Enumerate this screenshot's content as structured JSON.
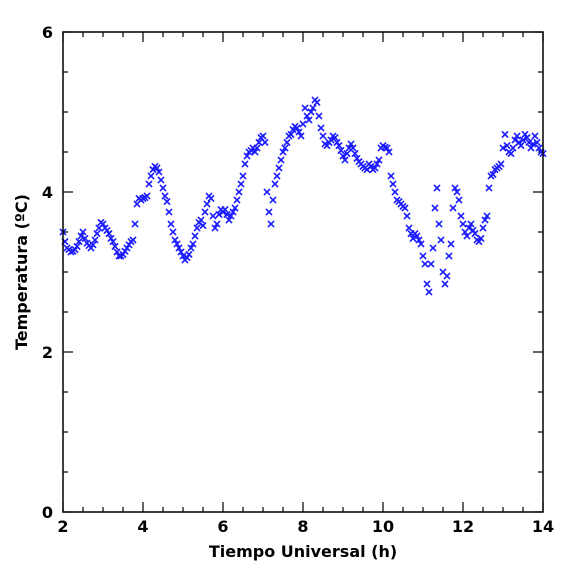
{
  "chart_data": {
    "type": "scatter",
    "title": "",
    "xlabel": "Tiempo Universal (h)",
    "ylabel": "Temperatura (ºC)",
    "xlim": [
      2,
      14
    ],
    "ylim": [
      0,
      6
    ],
    "xticks": [
      2,
      4,
      6,
      8,
      10,
      12,
      14
    ],
    "yticks": [
      0,
      2,
      4,
      6
    ],
    "grid": false,
    "marker": "x",
    "color": "#1a1aff",
    "series": [
      {
        "points": [
          [
            2.0,
            3.5
          ],
          [
            2.05,
            3.38
          ],
          [
            2.1,
            3.3
          ],
          [
            2.15,
            3.28
          ],
          [
            2.2,
            3.25
          ],
          [
            2.25,
            3.26
          ],
          [
            2.3,
            3.28
          ],
          [
            2.35,
            3.32
          ],
          [
            2.4,
            3.38
          ],
          [
            2.45,
            3.45
          ],
          [
            2.5,
            3.5
          ],
          [
            2.55,
            3.42
          ],
          [
            2.6,
            3.36
          ],
          [
            2.65,
            3.33
          ],
          [
            2.7,
            3.3
          ],
          [
            2.75,
            3.34
          ],
          [
            2.8,
            3.4
          ],
          [
            2.85,
            3.48
          ],
          [
            2.9,
            3.55
          ],
          [
            2.95,
            3.62
          ],
          [
            3.0,
            3.6
          ],
          [
            3.05,
            3.55
          ],
          [
            3.1,
            3.52
          ],
          [
            3.15,
            3.48
          ],
          [
            3.2,
            3.42
          ],
          [
            3.25,
            3.38
          ],
          [
            3.3,
            3.32
          ],
          [
            3.35,
            3.25
          ],
          [
            3.4,
            3.2
          ],
          [
            3.45,
            3.2
          ],
          [
            3.5,
            3.22
          ],
          [
            3.55,
            3.26
          ],
          [
            3.6,
            3.3
          ],
          [
            3.65,
            3.34
          ],
          [
            3.7,
            3.38
          ],
          [
            3.75,
            3.4
          ],
          [
            3.8,
            3.6
          ],
          [
            3.85,
            3.85
          ],
          [
            3.9,
            3.92
          ],
          [
            3.95,
            3.9
          ],
          [
            4.0,
            3.92
          ],
          [
            4.05,
            3.93
          ],
          [
            4.1,
            3.95
          ],
          [
            4.15,
            4.1
          ],
          [
            4.2,
            4.2
          ],
          [
            4.25,
            4.28
          ],
          [
            4.3,
            4.32
          ],
          [
            4.35,
            4.3
          ],
          [
            4.4,
            4.25
          ],
          [
            4.45,
            4.15
          ],
          [
            4.5,
            4.05
          ],
          [
            4.55,
            3.95
          ],
          [
            4.6,
            3.88
          ],
          [
            4.65,
            3.75
          ],
          [
            4.7,
            3.6
          ],
          [
            4.75,
            3.5
          ],
          [
            4.8,
            3.4
          ],
          [
            4.85,
            3.35
          ],
          [
            4.9,
            3.3
          ],
          [
            4.95,
            3.25
          ],
          [
            5.0,
            3.2
          ],
          [
            5.05,
            3.15
          ],
          [
            5.1,
            3.18
          ],
          [
            5.15,
            3.22
          ],
          [
            5.2,
            3.3
          ],
          [
            5.25,
            3.35
          ],
          [
            5.3,
            3.45
          ],
          [
            5.35,
            3.55
          ],
          [
            5.4,
            3.62
          ],
          [
            5.45,
            3.65
          ],
          [
            5.5,
            3.58
          ],
          [
            5.55,
            3.75
          ],
          [
            5.6,
            3.85
          ],
          [
            5.65,
            3.95
          ],
          [
            5.7,
            3.92
          ],
          [
            5.75,
            3.7
          ],
          [
            5.8,
            3.55
          ],
          [
            5.85,
            3.6
          ],
          [
            5.9,
            3.72
          ],
          [
            5.95,
            3.78
          ],
          [
            6.0,
            3.75
          ],
          [
            6.05,
            3.78
          ],
          [
            6.1,
            3.72
          ],
          [
            6.15,
            3.65
          ],
          [
            6.2,
            3.7
          ],
          [
            6.25,
            3.75
          ],
          [
            6.3,
            3.8
          ],
          [
            6.35,
            3.9
          ],
          [
            6.4,
            4.0
          ],
          [
            6.45,
            4.1
          ],
          [
            6.5,
            4.2
          ],
          [
            6.55,
            4.35
          ],
          [
            6.6,
            4.45
          ],
          [
            6.65,
            4.5
          ],
          [
            6.7,
            4.52
          ],
          [
            6.75,
            4.55
          ],
          [
            6.8,
            4.5
          ],
          [
            6.85,
            4.55
          ],
          [
            6.9,
            4.62
          ],
          [
            6.95,
            4.68
          ],
          [
            7.0,
            4.7
          ],
          [
            7.05,
            4.62
          ],
          [
            7.1,
            4.0
          ],
          [
            7.15,
            3.75
          ],
          [
            7.2,
            3.6
          ],
          [
            7.25,
            3.9
          ],
          [
            7.3,
            4.1
          ],
          [
            7.35,
            4.2
          ],
          [
            7.4,
            4.3
          ],
          [
            7.45,
            4.4
          ],
          [
            7.5,
            4.5
          ],
          [
            7.55,
            4.55
          ],
          [
            7.6,
            4.62
          ],
          [
            7.65,
            4.7
          ],
          [
            7.7,
            4.72
          ],
          [
            7.75,
            4.78
          ],
          [
            7.8,
            4.82
          ],
          [
            7.85,
            4.8
          ],
          [
            7.9,
            4.75
          ],
          [
            7.95,
            4.7
          ],
          [
            8.0,
            4.85
          ],
          [
            8.05,
            5.05
          ],
          [
            8.1,
            4.95
          ],
          [
            8.15,
            4.9
          ],
          [
            8.2,
            5.0
          ],
          [
            8.25,
            5.05
          ],
          [
            8.3,
            5.15
          ],
          [
            8.35,
            5.12
          ],
          [
            8.4,
            4.95
          ],
          [
            8.45,
            4.8
          ],
          [
            8.5,
            4.7
          ],
          [
            8.55,
            4.6
          ],
          [
            8.6,
            4.58
          ],
          [
            8.65,
            4.62
          ],
          [
            8.7,
            4.65
          ],
          [
            8.75,
            4.7
          ],
          [
            8.8,
            4.68
          ],
          [
            8.85,
            4.62
          ],
          [
            8.9,
            4.58
          ],
          [
            8.95,
            4.52
          ],
          [
            9.0,
            4.45
          ],
          [
            9.05,
            4.4
          ],
          [
            9.1,
            4.48
          ],
          [
            9.15,
            4.55
          ],
          [
            9.2,
            4.6
          ],
          [
            9.25,
            4.55
          ],
          [
            9.3,
            4.48
          ],
          [
            9.35,
            4.42
          ],
          [
            9.4,
            4.38
          ],
          [
            9.45,
            4.35
          ],
          [
            9.5,
            4.32
          ],
          [
            9.55,
            4.3
          ],
          [
            9.6,
            4.28
          ],
          [
            9.65,
            4.35
          ],
          [
            9.7,
            4.32
          ],
          [
            9.75,
            4.28
          ],
          [
            9.8,
            4.3
          ],
          [
            9.85,
            4.35
          ],
          [
            9.9,
            4.4
          ],
          [
            9.95,
            4.55
          ],
          [
            10.0,
            4.58
          ],
          [
            10.05,
            4.56
          ],
          [
            10.1,
            4.55
          ],
          [
            10.15,
            4.5
          ],
          [
            10.2,
            4.2
          ],
          [
            10.25,
            4.1
          ],
          [
            10.3,
            4.0
          ],
          [
            10.35,
            3.9
          ],
          [
            10.4,
            3.88
          ],
          [
            10.45,
            3.85
          ],
          [
            10.5,
            3.82
          ],
          [
            10.55,
            3.8
          ],
          [
            10.6,
            3.7
          ],
          [
            10.65,
            3.55
          ],
          [
            10.7,
            3.48
          ],
          [
            10.75,
            3.42
          ],
          [
            10.8,
            3.48
          ],
          [
            10.85,
            3.45
          ],
          [
            10.9,
            3.4
          ],
          [
            10.95,
            3.35
          ],
          [
            11.0,
            3.2
          ],
          [
            11.05,
            3.1
          ],
          [
            11.1,
            2.85
          ],
          [
            11.15,
            2.75
          ],
          [
            11.2,
            3.1
          ],
          [
            11.25,
            3.3
          ],
          [
            11.3,
            3.8
          ],
          [
            11.35,
            4.05
          ],
          [
            11.4,
            3.6
          ],
          [
            11.45,
            3.4
          ],
          [
            11.5,
            3.0
          ],
          [
            11.55,
            2.85
          ],
          [
            11.6,
            2.95
          ],
          [
            11.65,
            3.2
          ],
          [
            11.7,
            3.35
          ],
          [
            11.75,
            3.8
          ],
          [
            11.8,
            4.05
          ],
          [
            11.85,
            4.0
          ],
          [
            11.9,
            3.9
          ],
          [
            11.95,
            3.7
          ],
          [
            12.0,
            3.6
          ],
          [
            12.05,
            3.5
          ],
          [
            12.1,
            3.45
          ],
          [
            12.15,
            3.55
          ],
          [
            12.2,
            3.6
          ],
          [
            12.25,
            3.52
          ],
          [
            12.3,
            3.48
          ],
          [
            12.35,
            3.4
          ],
          [
            12.4,
            3.38
          ],
          [
            12.45,
            3.42
          ],
          [
            12.5,
            3.55
          ],
          [
            12.55,
            3.65
          ],
          [
            12.6,
            3.7
          ],
          [
            12.65,
            4.05
          ],
          [
            12.7,
            4.2
          ],
          [
            12.75,
            4.22
          ],
          [
            12.8,
            4.28
          ],
          [
            12.85,
            4.3
          ],
          [
            12.9,
            4.32
          ],
          [
            12.95,
            4.35
          ],
          [
            13.0,
            4.55
          ],
          [
            13.05,
            4.72
          ],
          [
            13.1,
            4.58
          ],
          [
            13.15,
            4.5
          ],
          [
            13.2,
            4.48
          ],
          [
            13.25,
            4.55
          ],
          [
            13.3,
            4.65
          ],
          [
            13.35,
            4.7
          ],
          [
            13.4,
            4.62
          ],
          [
            13.45,
            4.58
          ],
          [
            13.5,
            4.65
          ],
          [
            13.55,
            4.72
          ],
          [
            13.6,
            4.68
          ],
          [
            13.65,
            4.62
          ],
          [
            13.7,
            4.55
          ],
          [
            13.75,
            4.6
          ],
          [
            13.8,
            4.7
          ],
          [
            13.85,
            4.62
          ],
          [
            13.9,
            4.55
          ],
          [
            13.95,
            4.5
          ],
          [
            14.0,
            4.48
          ]
        ]
      }
    ]
  }
}
